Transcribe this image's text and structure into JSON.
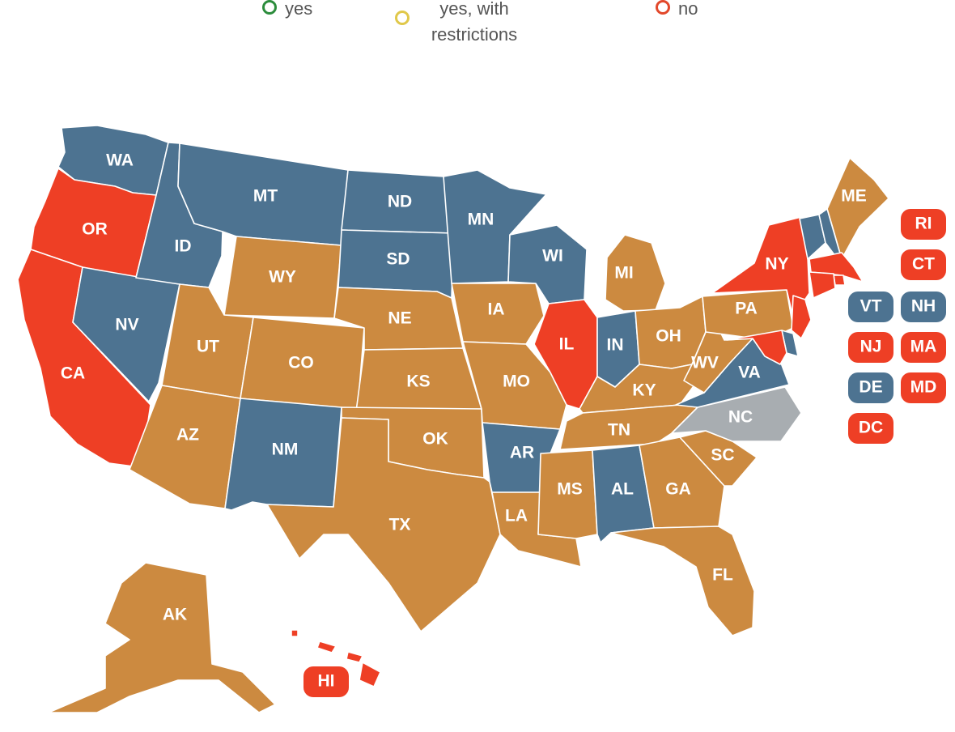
{
  "colors": {
    "yes": "#2c8c3c",
    "restricted": "#e0c84a",
    "no": "#e2482b",
    "fill_blue": "#4d7391",
    "fill_orange": "#cc8a40",
    "fill_red": "#ee3f25",
    "fill_gray": "#a8adb1"
  },
  "legend": [
    {
      "label": "yes",
      "color": "#2c8c3c"
    },
    {
      "label": "yes, with restrictions",
      "color": "#e0c84a"
    },
    {
      "label": "no",
      "color": "#e2482b"
    }
  ],
  "states": {
    "WA": {
      "label": "WA",
      "color": "#4d7391"
    },
    "OR": {
      "label": "OR",
      "color": "#ee3f25"
    },
    "CA": {
      "label": "CA",
      "color": "#ee3f25"
    },
    "ID": {
      "label": "ID",
      "color": "#4d7391"
    },
    "NV": {
      "label": "NV",
      "color": "#4d7391"
    },
    "MT": {
      "label": "MT",
      "color": "#4d7391"
    },
    "WY": {
      "label": "WY",
      "color": "#cc8a40"
    },
    "UT": {
      "label": "UT",
      "color": "#cc8a40"
    },
    "AZ": {
      "label": "AZ",
      "color": "#cc8a40"
    },
    "CO": {
      "label": "CO",
      "color": "#cc8a40"
    },
    "NM": {
      "label": "NM",
      "color": "#4d7391"
    },
    "ND": {
      "label": "ND",
      "color": "#4d7391"
    },
    "SD": {
      "label": "SD",
      "color": "#4d7391"
    },
    "NE": {
      "label": "NE",
      "color": "#cc8a40"
    },
    "KS": {
      "label": "KS",
      "color": "#cc8a40"
    },
    "OK": {
      "label": "OK",
      "color": "#cc8a40"
    },
    "TX": {
      "label": "TX",
      "color": "#cc8a40"
    },
    "MN": {
      "label": "MN",
      "color": "#4d7391"
    },
    "IA": {
      "label": "IA",
      "color": "#cc8a40"
    },
    "MO": {
      "label": "MO",
      "color": "#cc8a40"
    },
    "AR": {
      "label": "AR",
      "color": "#4d7391"
    },
    "LA": {
      "label": "LA",
      "color": "#cc8a40"
    },
    "WI": {
      "label": "WI",
      "color": "#4d7391"
    },
    "IL": {
      "label": "IL",
      "color": "#ee3f25"
    },
    "MI": {
      "label": "MI",
      "color": "#cc8a40"
    },
    "IN": {
      "label": "IN",
      "color": "#4d7391"
    },
    "OH": {
      "label": "OH",
      "color": "#cc8a40"
    },
    "KY": {
      "label": "KY",
      "color": "#cc8a40"
    },
    "TN": {
      "label": "TN",
      "color": "#cc8a40"
    },
    "MS": {
      "label": "MS",
      "color": "#cc8a40"
    },
    "AL": {
      "label": "AL",
      "color": "#4d7391"
    },
    "GA": {
      "label": "GA",
      "color": "#cc8a40"
    },
    "FL": {
      "label": "FL",
      "color": "#cc8a40"
    },
    "SC": {
      "label": "SC",
      "color": "#cc8a40"
    },
    "NC": {
      "label": "NC",
      "color": "#a8adb1"
    },
    "VA": {
      "label": "VA",
      "color": "#4d7391"
    },
    "WV": {
      "label": "WV",
      "color": "#cc8a40"
    },
    "PA": {
      "label": "PA",
      "color": "#cc8a40"
    },
    "NY": {
      "label": "NY",
      "color": "#ee3f25"
    },
    "ME": {
      "label": "ME",
      "color": "#cc8a40"
    },
    "VT": {
      "label": "VT",
      "color": "#4d7391"
    },
    "NH": {
      "label": "NH",
      "color": "#4d7391"
    },
    "MA": {
      "label": "MA",
      "color": "#ee3f25"
    },
    "RI": {
      "label": "RI",
      "color": "#ee3f25"
    },
    "CT": {
      "label": "CT",
      "color": "#ee3f25"
    },
    "NJ": {
      "label": "NJ",
      "color": "#ee3f25"
    },
    "DE": {
      "label": "DE",
      "color": "#4d7391"
    },
    "MD": {
      "label": "MD",
      "color": "#ee3f25"
    },
    "DC": {
      "label": "DC",
      "color": "#ee3f25"
    },
    "AK": {
      "label": "AK",
      "color": "#cc8a40"
    },
    "HI": {
      "label": "HI",
      "color": "#ee3f25"
    }
  }
}
